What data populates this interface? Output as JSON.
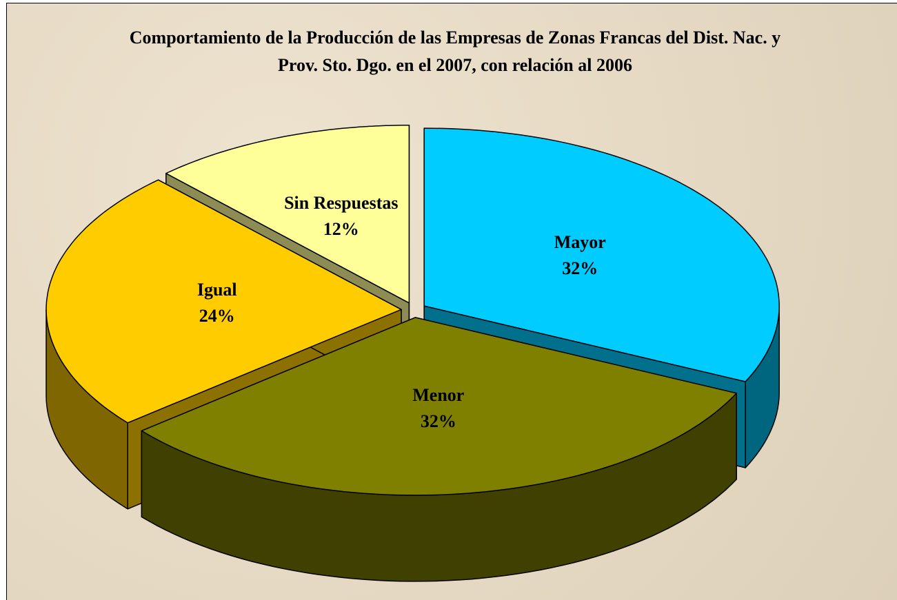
{
  "chart_data": {
    "type": "pie3d",
    "title": "Comportamiento de la Producción de las Empresas de Zonas Francas del Dist. Nac. y Prov. Sto. Dgo. en el 2007, con relación al 2006",
    "categories": [
      "Mayor",
      "Menor",
      "Igual",
      "Sin Respuestas"
    ],
    "values": [
      32,
      32,
      24,
      12
    ],
    "value_labels": [
      "32%",
      "32%",
      "24%",
      "12%"
    ],
    "colors": [
      "#00ccff",
      "#808000",
      "#ffcc00",
      "#ffff99"
    ]
  }
}
